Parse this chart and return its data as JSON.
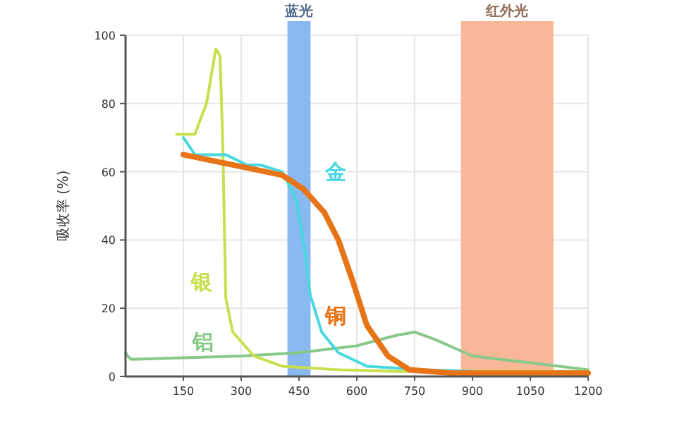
{
  "chart_data": {
    "type": "line",
    "ylabel": "吸收率 (%)",
    "xlim": [
      0,
      1200
    ],
    "ylim": [
      0,
      100
    ],
    "xticks": [
      150,
      300,
      450,
      600,
      750,
      900,
      1050,
      1200
    ],
    "yticks": [
      0,
      20,
      40,
      60,
      80,
      100
    ],
    "grid": true,
    "legend": false,
    "marker": "none",
    "line_style": "solid",
    "bands": [
      {
        "axis": "x",
        "from": 420,
        "to": 480,
        "label": "蓝光",
        "color": "#8ab8f0"
      },
      {
        "axis": "x",
        "from": 870,
        "to": 1110,
        "label": "红外光",
        "color": "#f8b898"
      }
    ],
    "series": [
      {
        "name": "铝",
        "color": "#88c888",
        "x": [
          0,
          5,
          15,
          150,
          300,
          450,
          600,
          700,
          750,
          800,
          900,
          1050,
          1200
        ],
        "values": [
          7,
          6,
          5,
          5.5,
          6,
          7,
          9,
          12,
          13,
          11,
          6,
          4,
          2
        ]
      },
      {
        "name": "银",
        "color": "#c8e050",
        "x": [
          132,
          180,
          210,
          234,
          245,
          252,
          260,
          278,
          333,
          406,
          552,
          700,
          900,
          1200
        ],
        "values": [
          71,
          71,
          80,
          96,
          94,
          69,
          23,
          13,
          6,
          3,
          2,
          1.5,
          1.5,
          1.5
        ]
      },
      {
        "name": "金",
        "color": "#48d8e0",
        "x": [
          150,
          180,
          260,
          315,
          350,
          406,
          443,
          461,
          479,
          509,
          552,
          626,
          772,
          900
        ],
        "values": [
          70,
          65,
          65,
          62,
          62,
          60,
          52,
          40,
          24,
          13,
          7,
          3,
          2,
          1.5
        ]
      },
      {
        "name": "铜",
        "color": "#e87418",
        "x": [
          150,
          406,
          461,
          516,
          552,
          589,
          626,
          681,
          736,
          845,
          1200
        ],
        "values": [
          65,
          59,
          55,
          48,
          40,
          28,
          15,
          6,
          2,
          1,
          1
        ]
      }
    ]
  }
}
